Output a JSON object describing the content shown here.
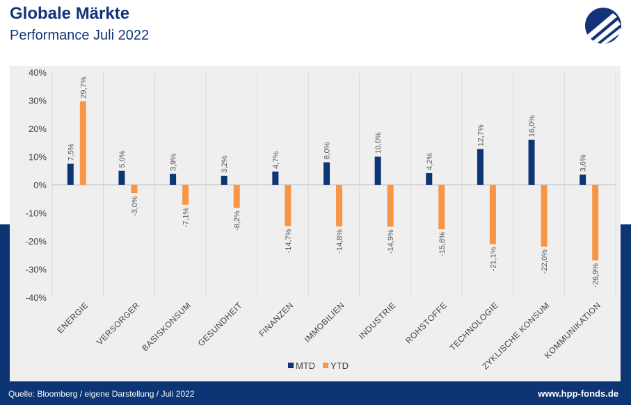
{
  "header": {
    "title": "Globale Märkte",
    "subtitle": "Performance Juli 2022"
  },
  "footer": {
    "source": "Quelle: Bloomberg / eigene Darstellung / Juli 2022",
    "website": "www.hpp-fonds.de"
  },
  "colors": {
    "navy": "#0d3473",
    "orange": "#f79646",
    "panel": "#efefef"
  },
  "icons": {
    "logo": "hpp-logo-icon"
  },
  "chart_data": {
    "type": "bar",
    "categories": [
      "ENERGIE",
      "VERSORGER",
      "BASISKONSUM",
      "GESUNDHEIT",
      "FINANZEN",
      "IMMOBILIEN",
      "INDUSTRIE",
      "ROHSTOFFE",
      "TECHNOLOGIE",
      "ZYKLISCHE KONSUM",
      "KOMMUNIKATION"
    ],
    "series": [
      {
        "name": "MTD",
        "color": "#0d3473",
        "values": [
          7.5,
          5.0,
          3.9,
          3.2,
          4.7,
          8.0,
          10.0,
          4.2,
          12.7,
          16.0,
          3.6
        ],
        "labels": [
          "7,5%",
          "5,0%",
          "3,9%",
          "3,2%",
          "4,7%",
          "8,0%",
          "10,0%",
          "4,2%",
          "12,7%",
          "16,0%",
          "3,6%"
        ]
      },
      {
        "name": "YTD",
        "color": "#f79646",
        "values": [
          29.7,
          -3.0,
          -7.1,
          -8.2,
          -14.7,
          -14.8,
          -14.9,
          -15.8,
          -21.1,
          -22.0,
          -26.9
        ],
        "labels": [
          "29,7%",
          "-3,0%",
          "-7,1%",
          "-8,2%",
          "-14,7%",
          "-14,8%",
          "-14,9%",
          "-15,8%",
          "-21,1%",
          "-22,0%",
          "-26,9%"
        ]
      }
    ],
    "yticks": [
      "40%",
      "30%",
      "20%",
      "10%",
      "0%",
      "-10%",
      "-20%",
      "-30%",
      "-40%"
    ],
    "ylim": [
      -40,
      40
    ],
    "grid": "vertical separators",
    "legend": "bottom-center"
  }
}
